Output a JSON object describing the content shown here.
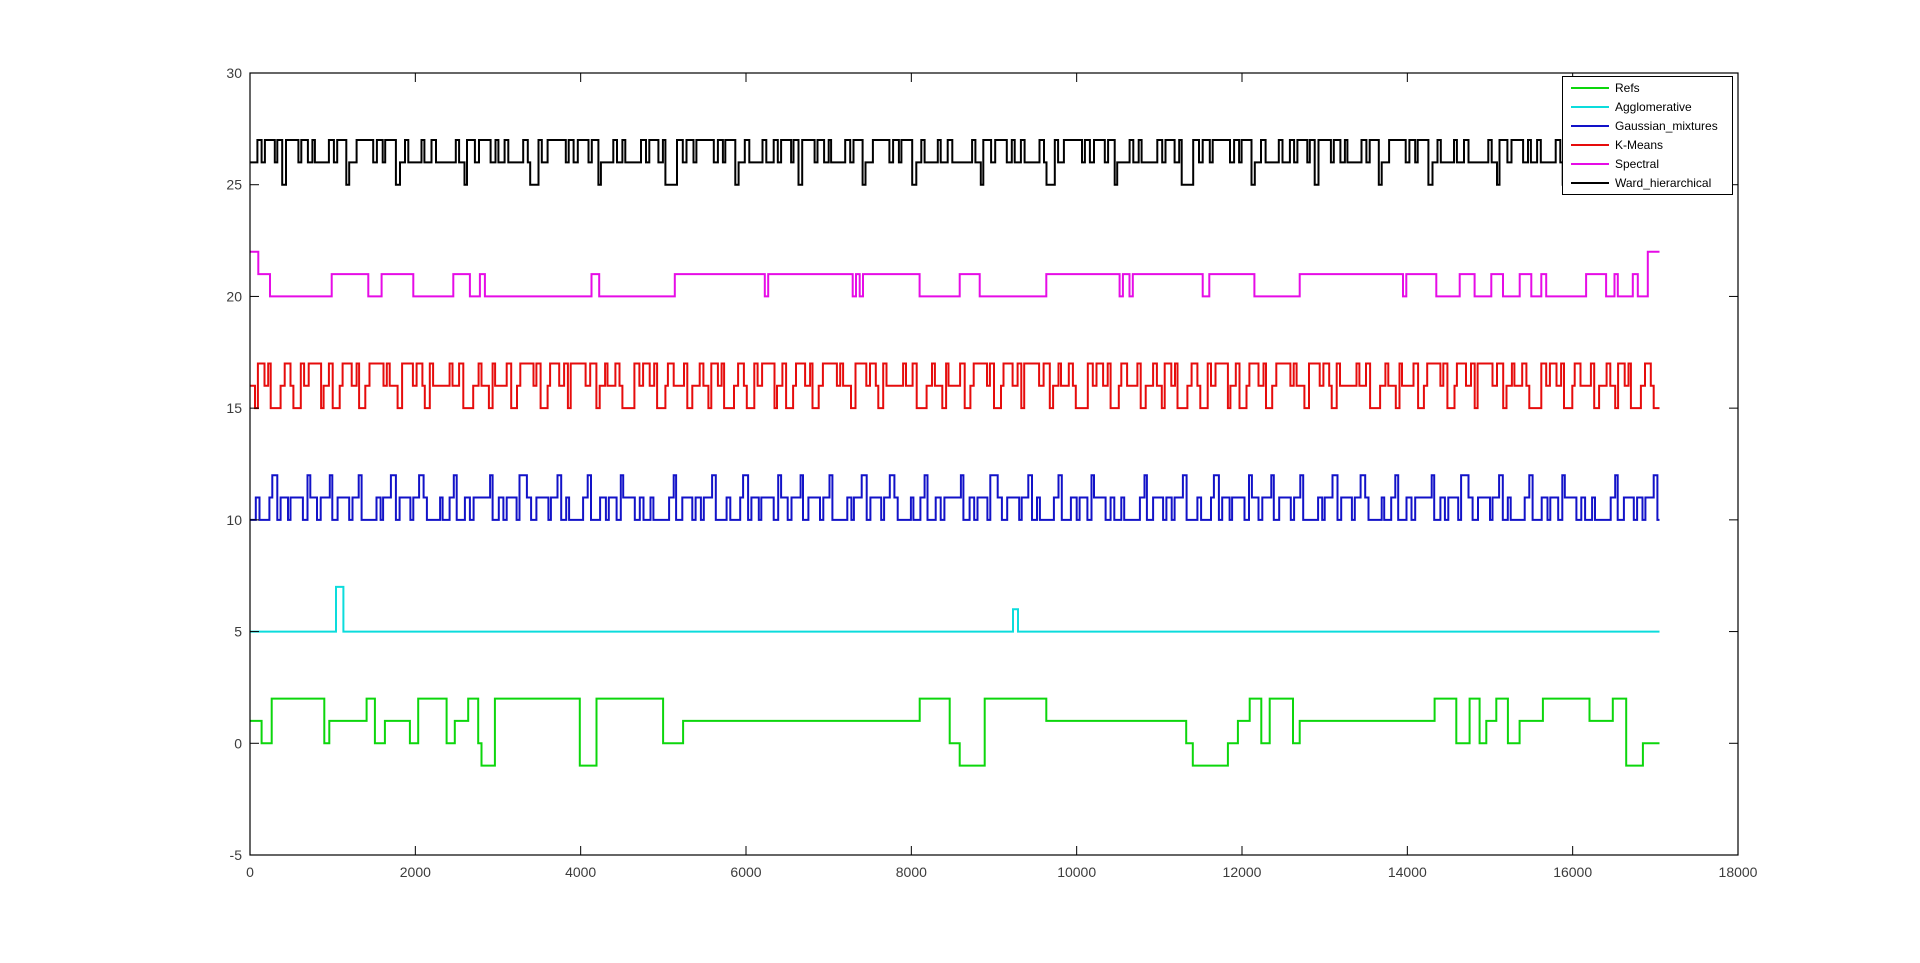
{
  "figure": {
    "background": "#ffffff",
    "plot_border_color": "#000000",
    "tick_label_color": "#3c3c3c"
  },
  "axes": {
    "x": {
      "min": 0,
      "max": 18000,
      "ticks": [
        0,
        2000,
        4000,
        6000,
        8000,
        10000,
        12000,
        14000,
        16000,
        18000
      ]
    },
    "y": {
      "min": -5,
      "max": 30,
      "ticks": [
        -5,
        0,
        5,
        10,
        15,
        20,
        25,
        30
      ]
    },
    "grid": false,
    "box": true,
    "tick_length": 9
  },
  "legend": {
    "position": "northeast",
    "entries": [
      "Refs",
      "Agglomerative",
      "Gaussian_mixtures",
      "K-Means",
      "Spectral",
      "Ward_hierarchical"
    ]
  },
  "chart_data": {
    "type": "line",
    "subtype": "step",
    "title": "",
    "xlabel": "",
    "ylabel": "",
    "xlim": [
      0,
      18000
    ],
    "ylim": [
      -5,
      30
    ],
    "x_range": [
      0,
      17050
    ],
    "legend_position": "northeast",
    "description": "Cluster label sequences per algorithm, each offset vertically by 5",
    "series": [
      {
        "name": "Refs",
        "color": "#0cd60c",
        "offset": 0,
        "levels": [
          -1,
          0,
          1,
          2
        ],
        "points": [
          [
            0,
            1
          ],
          [
            140,
            0
          ],
          [
            262,
            2
          ],
          [
            899,
            0
          ],
          [
            959,
            1
          ],
          [
            1411,
            2
          ],
          [
            1511,
            0
          ],
          [
            1632,
            1
          ],
          [
            1934,
            0
          ],
          [
            2035,
            2
          ],
          [
            2378,
            0
          ],
          [
            2478,
            1
          ],
          [
            2640,
            2
          ],
          [
            2761,
            0
          ],
          [
            2801,
            -1
          ],
          [
            2962,
            2
          ],
          [
            3990,
            -1
          ],
          [
            4191,
            2
          ],
          [
            4997,
            0
          ],
          [
            5239,
            1
          ],
          [
            8101,
            2
          ],
          [
            8464,
            0
          ],
          [
            8585,
            -1
          ],
          [
            8887,
            2
          ],
          [
            9633,
            1
          ],
          [
            11325,
            0
          ],
          [
            11405,
            -1
          ],
          [
            11829,
            0
          ],
          [
            11950,
            1
          ],
          [
            12093,
            2
          ],
          [
            12234,
            0
          ],
          [
            12335,
            2
          ],
          [
            12617,
            0
          ],
          [
            12698,
            1
          ],
          [
            14330,
            2
          ],
          [
            14592,
            0
          ],
          [
            14753,
            2
          ],
          [
            14874,
            0
          ],
          [
            14955,
            1
          ],
          [
            15076,
            2
          ],
          [
            15217,
            0
          ],
          [
            15358,
            1
          ],
          [
            15640,
            2
          ],
          [
            16204,
            1
          ],
          [
            16486,
            2
          ],
          [
            16647,
            -1
          ],
          [
            16849,
            0
          ]
        ]
      },
      {
        "name": "Agglomerative",
        "color": "#0cdcdc",
        "offset": 5,
        "levels": [
          0,
          1,
          2
        ],
        "points": [
          [
            0,
            0
          ],
          [
            1040,
            2
          ],
          [
            1130,
            0
          ],
          [
            9230,
            1
          ],
          [
            9290,
            0
          ]
        ]
      },
      {
        "name": "Gaussian_mixtures",
        "color": "#1212c8",
        "offset": 10,
        "levels": [
          0,
          1,
          2
        ],
        "tile": true,
        "segs": [
          70,
          0,
          45,
          1,
          120,
          0,
          35,
          1,
          60,
          2,
          40,
          0,
          90,
          1,
          30,
          0,
          150,
          1,
          55,
          0,
          35,
          2,
          80,
          1,
          45,
          0,
          110,
          1,
          30,
          2,
          65,
          0,
          140,
          1,
          40,
          0,
          75,
          1,
          35,
          2,
          180,
          0,
          50,
          1,
          30,
          0,
          95,
          1,
          60,
          2,
          45,
          0,
          130,
          1,
          35,
          0,
          70,
          1,
          55,
          2,
          40,
          1,
          160,
          0,
          30,
          1,
          85,
          0,
          50,
          1,
          35,
          2,
          100,
          0,
          60,
          1,
          45,
          0,
          200,
          1,
          30,
          2,
          75,
          0,
          55,
          1,
          40,
          0,
          120,
          1,
          35,
          0,
          90,
          2,
          50,
          1,
          65,
          0,
          145,
          1,
          30,
          0,
          80,
          1,
          45,
          2,
          60,
          0,
          35,
          1,
          170,
          0,
          55,
          1,
          40,
          2,
          110,
          0,
          70,
          1,
          35,
          0,
          95,
          1,
          50,
          0,
          30,
          2,
          140,
          1,
          60,
          0,
          45,
          1,
          85,
          0,
          35,
          1,
          190,
          0,
          55,
          1,
          30,
          2,
          75,
          0,
          120,
          1,
          40,
          0,
          65,
          1,
          35,
          0,
          100,
          1,
          45,
          2,
          60,
          0
        ]
      },
      {
        "name": "K-Means",
        "color": "#e60c0c",
        "offset": 15,
        "levels": [
          0,
          1,
          2
        ],
        "tile": true,
        "segs": [
          60,
          1,
          35,
          0,
          80,
          2,
          45,
          1,
          30,
          2,
          120,
          0,
          50,
          1,
          70,
          2,
          35,
          1,
          90,
          0,
          40,
          2,
          55,
          1,
          150,
          2,
          30,
          0,
          65,
          1,
          45,
          2,
          85,
          0,
          35,
          1,
          110,
          2,
          60,
          1,
          30,
          2,
          75,
          0,
          50,
          1,
          170,
          2,
          40,
          1,
          35,
          2,
          95,
          1,
          55,
          0,
          130,
          2,
          45,
          1,
          70,
          2,
          30,
          1,
          60,
          0,
          40,
          2,
          200,
          1,
          35,
          2,
          80,
          1,
          50,
          2,
          120,
          0,
          65,
          1,
          35,
          2,
          90,
          1,
          45,
          0,
          30,
          2,
          140,
          1,
          55,
          2,
          70,
          0,
          40,
          1,
          160,
          2,
          35,
          1,
          50,
          2,
          85,
          0,
          30,
          1,
          110,
          2,
          60,
          1,
          45,
          2,
          35,
          0,
          180,
          2,
          55,
          1,
          75,
          2,
          40,
          0,
          65,
          1,
          30,
          2,
          95,
          1,
          50,
          2,
          35,
          1,
          145,
          0,
          60,
          2,
          45,
          1,
          80,
          2,
          55,
          1,
          35,
          2,
          100,
          0,
          30,
          1,
          70,
          2,
          125,
          1,
          40,
          2,
          60,
          0,
          90,
          1,
          45,
          2
        ]
      },
      {
        "name": "Spectral",
        "color": "#e60ce6",
        "offset": 20,
        "levels": [
          0,
          1,
          2
        ],
        "points": [
          [
            0,
            2
          ],
          [
            100,
            1
          ],
          [
            242,
            0
          ],
          [
            988,
            1
          ],
          [
            1431,
            0
          ],
          [
            1592,
            1
          ],
          [
            1975,
            0
          ],
          [
            2459,
            1
          ],
          [
            2660,
            0
          ],
          [
            2781,
            1
          ],
          [
            2842,
            0
          ],
          [
            4131,
            1
          ],
          [
            4224,
            0
          ],
          [
            5139,
            1
          ],
          [
            6227,
            0
          ],
          [
            6268,
            1
          ],
          [
            7291,
            0
          ],
          [
            7331,
            1
          ],
          [
            7375,
            0
          ],
          [
            7415,
            1
          ],
          [
            8100,
            0
          ],
          [
            8585,
            1
          ],
          [
            8827,
            0
          ],
          [
            9633,
            1
          ],
          [
            10519,
            0
          ],
          [
            10559,
            1
          ],
          [
            10639,
            0
          ],
          [
            10679,
            1
          ],
          [
            11524,
            0
          ],
          [
            11605,
            1
          ],
          [
            12150,
            0
          ],
          [
            12698,
            1
          ],
          [
            13948,
            0
          ],
          [
            13988,
            1
          ],
          [
            14350,
            0
          ],
          [
            14633,
            1
          ],
          [
            14814,
            0
          ],
          [
            15016,
            1
          ],
          [
            15157,
            0
          ],
          [
            15359,
            1
          ],
          [
            15499,
            0
          ],
          [
            15620,
            1
          ],
          [
            15680,
            0
          ],
          [
            16163,
            1
          ],
          [
            16405,
            0
          ],
          [
            16506,
            1
          ],
          [
            16546,
            0
          ],
          [
            16728,
            1
          ],
          [
            16788,
            0
          ],
          [
            16909,
            2
          ]
        ]
      },
      {
        "name": "Ward_hierarchical",
        "color": "#000000",
        "offset": 25,
        "levels": [
          0,
          1,
          2
        ],
        "tile": true,
        "segs": [
          90,
          1,
          50,
          2,
          40,
          1,
          120,
          2,
          30,
          1,
          60,
          2,
          45,
          0,
          150,
          2,
          35,
          1,
          80,
          2,
          55,
          1,
          30,
          2,
          170,
          1,
          60,
          2,
          40,
          1,
          110,
          2,
          35,
          0,
          90,
          1,
          200,
          2,
          45,
          1,
          70,
          2,
          30,
          1,
          130,
          2,
          50,
          0,
          60,
          1,
          40,
          2,
          160,
          1,
          35,
          2,
          85,
          1,
          55,
          2,
          240,
          1,
          40,
          2,
          65,
          1,
          30,
          0,
          95,
          2,
          50,
          1,
          140,
          2,
          60,
          1,
          35,
          2,
          75,
          1,
          45,
          2,
          180,
          1,
          55,
          2,
          30,
          1,
          100,
          0,
          40,
          2,
          70,
          1,
          220,
          2,
          35,
          1,
          60,
          2,
          50,
          1,
          130,
          2,
          40,
          1,
          80,
          2,
          30,
          0,
          150,
          1,
          45,
          2,
          65,
          1,
          35,
          2,
          190,
          1,
          60,
          2,
          40,
          1,
          110,
          2,
          55,
          1,
          30,
          2,
          140,
          0,
          70,
          2,
          45,
          1,
          85,
          2,
          35,
          1,
          210,
          2,
          50,
          1,
          60,
          2,
          30,
          1,
          120,
          2,
          40,
          0,
          75,
          1,
          55,
          2,
          160,
          1,
          45,
          2
        ]
      }
    ]
  }
}
